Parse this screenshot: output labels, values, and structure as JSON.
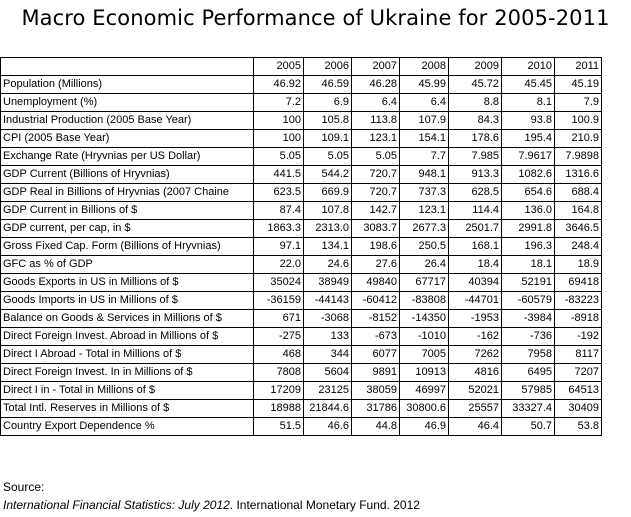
{
  "title": "Macro Economic Performance of Ukraine for 2005-2011",
  "years": [
    "2005",
    "2006",
    "2007",
    "2008",
    "2009",
    "2010",
    "2011"
  ],
  "rows": [
    {
      "label": "Population (Millions)",
      "values": [
        "46.92",
        "46.59",
        "46.28",
        "45.99",
        "45.72",
        "45.45",
        "45.19"
      ]
    },
    {
      "label": "Unemployment (%)",
      "values": [
        "7.2",
        "6.9",
        "6.4",
        "6.4",
        "8.8",
        "8.1",
        "7.9"
      ]
    },
    {
      "label": "Industrial Production (2005 Base Year)",
      "values": [
        "100",
        "105.8",
        "113.8",
        "107.9",
        "84.3",
        "93.8",
        "100.9"
      ]
    },
    {
      "label": "CPI (2005 Base Year)",
      "values": [
        "100",
        "109.1",
        "123.1",
        "154.1",
        "178.6",
        "195.4",
        "210.9"
      ]
    },
    {
      "label": "Exchange Rate (Hryvnias per US Dollar)",
      "values": [
        "5.05",
        "5.05",
        "5.05",
        "7.7",
        "7.985",
        "7.9617",
        "7.9898"
      ]
    },
    {
      "label": "GDP Current (Billions of Hryvnias)",
      "values": [
        "441.5",
        "544.2",
        "720.7",
        "948.1",
        "913.3",
        "1082.6",
        "1316.6"
      ]
    },
    {
      "label": "GDP Real in Billions of Hryvnias (2007 Chaine",
      "values": [
        "623.5",
        "669.9",
        "720.7",
        "737.3",
        "628.5",
        "654.6",
        "688.4"
      ]
    },
    {
      "label": "GDP Current in Billions of $",
      "values": [
        "87.4",
        "107.8",
        "142.7",
        "123.1",
        "114.4",
        "136.0",
        "164.8"
      ]
    },
    {
      "label": "GDP current, per cap, in $",
      "values": [
        "1863.3",
        "2313.0",
        "3083.7",
        "2677.3",
        "2501.7",
        "2991.8",
        "3646.5"
      ]
    },
    {
      "label": "Gross Fixed Cap. Form (Billions of Hryvnias)",
      "values": [
        "97.1",
        "134.1",
        "198.6",
        "250.5",
        "168.1",
        "196.3",
        "248.4"
      ]
    },
    {
      "label": "GFC as % of GDP",
      "values": [
        "22.0",
        "24.6",
        "27.6",
        "26.4",
        "18.4",
        "18.1",
        "18.9"
      ]
    },
    {
      "label": "Goods Exports in US in Millions of $",
      "values": [
        "35024",
        "38949",
        "49840",
        "67717",
        "40394",
        "52191",
        "69418"
      ]
    },
    {
      "label": "Goods Imports in US in Millions of $",
      "values": [
        "-36159",
        "-44143",
        "-60412",
        "-83808",
        "-44701",
        "-60579",
        "-83223"
      ]
    },
    {
      "label": "Balance on Goods & Services in Millions of $",
      "values": [
        "671",
        "-3068",
        "-8152",
        "-14350",
        "-1953",
        "-3984",
        "-8918"
      ]
    },
    {
      "label": "Direct Foreign Invest. Abroad in Millions of $",
      "values": [
        "-275",
        "133",
        "-673",
        "-1010",
        "-162",
        "-736",
        "-192"
      ]
    },
    {
      "label": "Direct I Abroad - Total in Millions of $",
      "values": [
        "468",
        "344",
        "6077",
        "7005",
        "7262",
        "7958",
        "8117"
      ]
    },
    {
      "label": "Direct Foreign Invest. In in Millions of $",
      "values": [
        "7808",
        "5604",
        "9891",
        "10913",
        "4816",
        "6495",
        "7207"
      ]
    },
    {
      "label": "Direct I in - Total in Millions of $",
      "values": [
        "17209",
        "23125",
        "38059",
        "46997",
        "52021",
        "57985",
        "64513"
      ]
    },
    {
      "label": "Total Intl. Reserves in Millions of $",
      "values": [
        "18988",
        "21844.6",
        "31786",
        "30800.6",
        "25557",
        "33327.4",
        "30409"
      ]
    },
    {
      "label": "Country Export Dependence %",
      "values": [
        "51.5",
        "46.6",
        "44.8",
        "46.9",
        "46.4",
        "50.7",
        "53.8"
      ]
    }
  ],
  "source": {
    "label": "Source:",
    "publication": "International Financial Statistics: July 2012",
    "publisher": ".  International Monetary Fund. 2012"
  }
}
